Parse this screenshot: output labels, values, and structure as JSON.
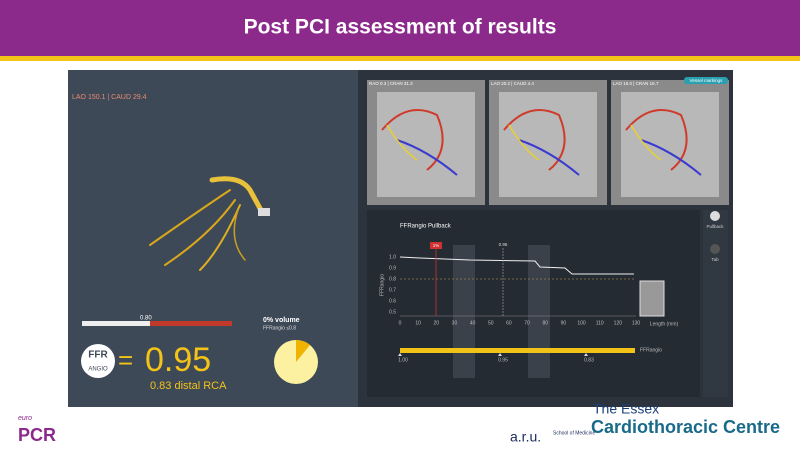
{
  "header": {
    "title": "Post PCI assessment of results"
  },
  "left_panel": {
    "view": "LAO 150.1 | CAUD 29.4",
    "scale_mark": "0.80",
    "volume": "0% volume",
    "volume_note": "FFRangio ≤0.8",
    "ffr": "FFR",
    "angio": "ANGIO",
    "equals": "=",
    "value": "0.95",
    "distal": "0.83 distal RCA"
  },
  "images": [
    {
      "label": "RAO 0.3 | CRAN 31.3"
    },
    {
      "label": "LAO 20.2 | CAUD 4.4"
    },
    {
      "label": "LAO 16.0 | CRAN 16.7"
    }
  ],
  "vessel_button": "Vessel markings",
  "pullback": {
    "title": "FFRangio Pullback",
    "red_marker": "1%",
    "grey_marker": "0.95",
    "y_axis": "FFRangio",
    "yticks": [
      "1.0",
      "0.9",
      "0.8",
      "0.7",
      "0.6",
      "0.5"
    ],
    "xticks": [
      "0",
      "10",
      "20",
      "30",
      "40",
      "50",
      "60",
      "70",
      "80",
      "90",
      "100",
      "110",
      "120",
      "130"
    ],
    "x_axis": "Length (mm)",
    "bar_labels": [
      "1.00",
      "0.95",
      "0.83"
    ],
    "bar_name": "FFRangio"
  },
  "sidebar": {
    "tabs": [
      "Pullback",
      "Tab"
    ]
  },
  "footer": {
    "euro": "euro",
    "pcr": "PCR",
    "aru": "a.r.u.",
    "school": "School of Medicine",
    "essex": "The Essex",
    "centre": "Cardiothoracic Centre"
  }
}
